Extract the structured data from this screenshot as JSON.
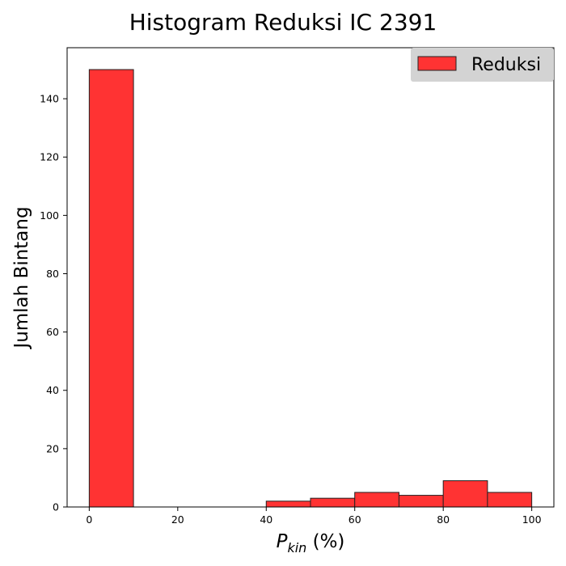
{
  "chart_data": {
    "type": "bar",
    "title": "Histogram Reduksi IC 2391",
    "xlabel": {
      "main": "P",
      "sub": "kin",
      "rest": " (%)"
    },
    "ylabel": "Jumlah Bintang",
    "bin_edges": [
      0,
      10,
      20,
      30,
      40,
      50,
      60,
      70,
      80,
      90,
      100
    ],
    "counts": [
      150,
      0,
      0,
      0,
      2,
      3,
      5,
      4,
      9,
      5
    ],
    "xlim": [
      -5,
      105
    ],
    "ylim": [
      0,
      157.5
    ],
    "xticks": [
      "0",
      "20",
      "40",
      "60",
      "80",
      "100"
    ],
    "yticks": [
      "0",
      "20",
      "40",
      "60",
      "80",
      "100",
      "120",
      "140"
    ],
    "series": [
      {
        "name": "Reduksi",
        "color": "#ff3333",
        "edgecolor": "#222222"
      }
    ],
    "legend": {
      "placement": "top-right",
      "background": "#d3d3d3"
    },
    "grid": false
  }
}
